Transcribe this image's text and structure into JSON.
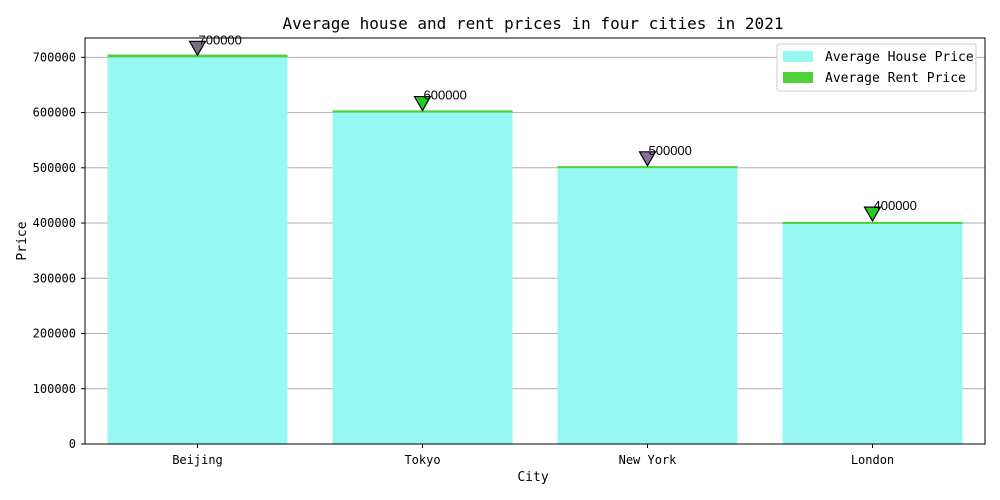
{
  "chart_data": {
    "type": "bar",
    "title": "Average house and rent prices in four cities in 2021",
    "xlabel": "City",
    "ylabel": "Price",
    "categories": [
      "Beijing",
      "Tokyo",
      "New York",
      "London"
    ],
    "series": [
      {
        "name": "Average House Price",
        "values": [
          700000,
          600000,
          500000,
          400000
        ],
        "color": "#96f8f0"
      },
      {
        "name": "Average Rent Price",
        "values": [
          5000,
          4000,
          3000,
          2000
        ],
        "color": "#4cd137"
      }
    ],
    "data_labels": [
      "700000",
      "600000",
      "500000",
      "400000"
    ],
    "marker_colors": [
      "#7d6b8a",
      "#22cc22",
      "#8c6aa0",
      "#22cc22"
    ],
    "ylim": [
      0,
      735000
    ],
    "yticks": [
      0,
      100000,
      200000,
      300000,
      400000,
      500000,
      600000,
      700000
    ],
    "grid": true,
    "legend_position": "top-right"
  }
}
